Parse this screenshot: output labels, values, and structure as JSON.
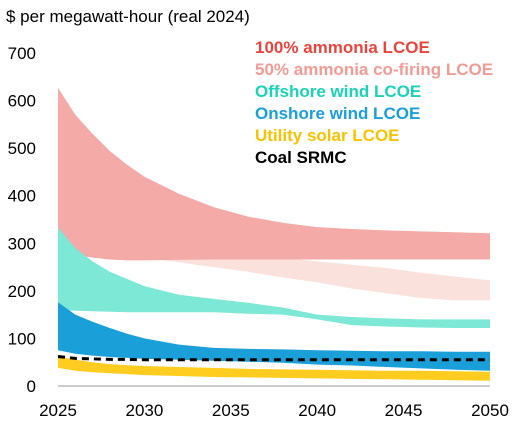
{
  "chart_data": {
    "type": "area",
    "unit_label": "$ per megawatt-hour (real 2024)",
    "x": [
      2025,
      2026,
      2027,
      2028,
      2029,
      2030,
      2032,
      2034,
      2036,
      2038,
      2040,
      2042,
      2044,
      2046,
      2048,
      2050
    ],
    "xticks": [
      2025,
      2030,
      2035,
      2040,
      2045,
      2050
    ],
    "yticks": [
      0,
      100,
      200,
      300,
      400,
      500,
      600,
      700
    ],
    "ylim": [
      0,
      700
    ],
    "xlim": [
      2025,
      2050
    ],
    "grid": false,
    "legend_position": "top-right",
    "series": [
      {
        "name": "50% ammonia co-firing LCOE",
        "color": "#fbe1dc",
        "low": [
          300,
          292,
          285,
          280,
          275,
          270,
          260,
          250,
          240,
          228,
          218,
          205,
          195,
          185,
          180,
          180
        ],
        "high": [
          338,
          318,
          303,
          293,
          287,
          283,
          280,
          278,
          275,
          270,
          262,
          255,
          248,
          238,
          230,
          222
        ]
      },
      {
        "name": "100% ammonia LCOE",
        "color": "#f4aaa6",
        "low": [
          285,
          275,
          270,
          266,
          264,
          264,
          265,
          266,
          266,
          266,
          266,
          266,
          266,
          266,
          266,
          266
        ],
        "high": [
          627,
          570,
          530,
          494,
          465,
          440,
          404,
          376,
          356,
          343,
          334,
          330,
          327,
          325,
          323,
          321
        ]
      },
      {
        "name": "Offshore wind LCOE",
        "color": "#7de8d5",
        "low": [
          160,
          158,
          157,
          156,
          155,
          155,
          155,
          155,
          152,
          150,
          140,
          128,
          125,
          123,
          122,
          122
        ],
        "high": [
          333,
          290,
          262,
          240,
          225,
          210,
          192,
          183,
          175,
          165,
          150,
          145,
          142,
          140,
          140,
          140
        ]
      },
      {
        "name": "Onshore wind LCOE",
        "color": "#1a9fd8",
        "low": [
          75,
          68,
          64,
          61,
          59,
          57,
          55,
          53,
          51,
          49,
          45,
          43,
          40,
          37,
          34,
          32
        ],
        "high": [
          176,
          150,
          135,
          122,
          110,
          100,
          87,
          80,
          78,
          77,
          75,
          74,
          73,
          73,
          72,
          72
        ]
      },
      {
        "name": "Utility solar LCOE",
        "color": "#ffcc1f",
        "low": [
          38,
          32,
          29,
          27,
          25,
          23,
          21,
          19,
          18,
          17,
          16,
          15,
          14,
          13,
          12,
          11
        ],
        "high": [
          62,
          55,
          50,
          46,
          44,
          42,
          40,
          38,
          36,
          35,
          34,
          33,
          32,
          32,
          31,
          30
        ]
      },
      {
        "name": "Coal SRMC",
        "color": "#000000",
        "style": "dashed",
        "values": [
          62,
          58,
          57,
          56,
          56,
          55,
          55,
          55,
          55,
          55,
          55,
          55,
          55,
          55,
          55,
          55
        ]
      }
    ]
  }
}
